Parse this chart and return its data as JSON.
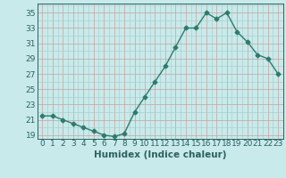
{
  "x": [
    0,
    1,
    2,
    3,
    4,
    5,
    6,
    7,
    8,
    9,
    10,
    11,
    12,
    13,
    14,
    15,
    16,
    17,
    18,
    19,
    20,
    21,
    22,
    23
  ],
  "y": [
    21.5,
    21.5,
    21.0,
    20.5,
    20.0,
    19.5,
    19.0,
    18.8,
    19.2,
    22.0,
    24.0,
    26.0,
    28.0,
    30.5,
    33.0,
    33.0,
    35.0,
    34.2,
    35.0,
    32.5,
    31.2,
    29.5,
    29.0,
    27.0
  ],
  "line_color": "#2e7b6e",
  "marker": "D",
  "marker_size": 2.5,
  "bg_color": "#c8eaea",
  "grid_color_minor": "#a8c8c8",
  "grid_color_major": "#c8a0a0",
  "xlabel": "Humidex (Indice chaleur)",
  "yticks": [
    19,
    21,
    23,
    25,
    27,
    29,
    31,
    33,
    35
  ],
  "ylim": [
    18.5,
    36.2
  ],
  "xlim": [
    -0.5,
    23.5
  ],
  "font_color": "#2e6060",
  "tick_fontsize": 6.5,
  "xlabel_fontsize": 7.5
}
